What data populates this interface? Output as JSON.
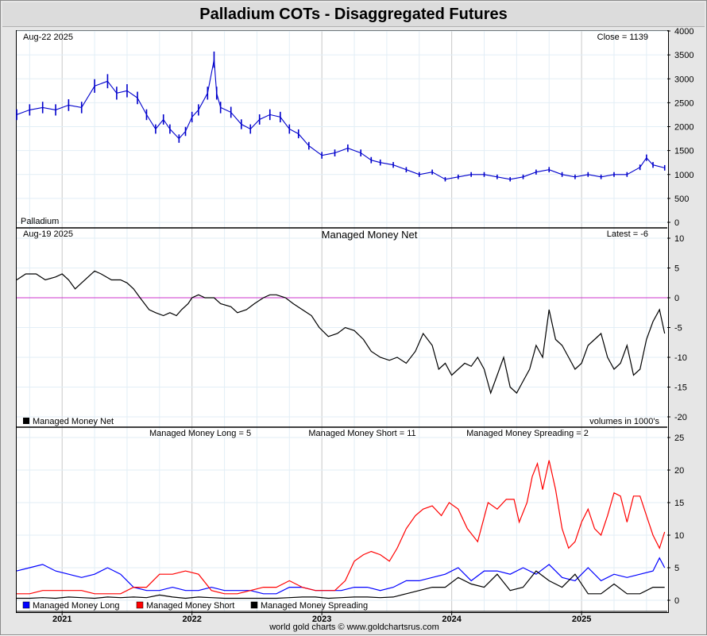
{
  "title": "Palladium COTs - Disaggregated Futures",
  "footer": "world gold charts © www.goldchartsrus.com",
  "x_axis": {
    "years": [
      "2021",
      "2022",
      "2023",
      "2024",
      "2025"
    ]
  },
  "chart_data": [
    {
      "type": "bar",
      "name": "price",
      "date_label": "Aug-22  2025",
      "latest_label": "Close = 1139",
      "series_label": "Palladium",
      "ylim": [
        0,
        4000
      ],
      "yticks": [
        0,
        500,
        1000,
        1500,
        2000,
        2500,
        3000,
        3500,
        4000
      ],
      "color": "#0000cc",
      "x": [
        2020.65,
        2020.75,
        2020.85,
        2020.95,
        2021.05,
        2021.15,
        2021.25,
        2021.35,
        2021.42,
        2021.5,
        2021.58,
        2021.65,
        2021.72,
        2021.78,
        2021.83,
        2021.9,
        2021.95,
        2022.0,
        2022.05,
        2022.12,
        2022.17,
        2022.19,
        2022.22,
        2022.3,
        2022.38,
        2022.45,
        2022.52,
        2022.6,
        2022.68,
        2022.75,
        2022.82,
        2022.9,
        2023.0,
        2023.1,
        2023.2,
        2023.3,
        2023.38,
        2023.45,
        2023.55,
        2023.65,
        2023.75,
        2023.85,
        2023.95,
        2024.05,
        2024.15,
        2024.25,
        2024.35,
        2024.45,
        2024.55,
        2024.65,
        2024.75,
        2024.85,
        2024.95,
        2025.05,
        2025.15,
        2025.25,
        2025.35,
        2025.45,
        2025.5,
        2025.55,
        2025.64
      ],
      "values": [
        2250,
        2350,
        2400,
        2350,
        2450,
        2400,
        2850,
        2950,
        2700,
        2750,
        2600,
        2250,
        1950,
        2150,
        1950,
        1750,
        1900,
        2200,
        2350,
        2700,
        3400,
        2700,
        2400,
        2300,
        2050,
        1950,
        2150,
        2250,
        2200,
        1950,
        1850,
        1600,
        1400,
        1450,
        1550,
        1450,
        1300,
        1250,
        1200,
        1100,
        1000,
        1050,
        900,
        950,
        1000,
        1000,
        950,
        900,
        950,
        1050,
        1100,
        1000,
        950,
        1000,
        950,
        1000,
        1000,
        1150,
        1350,
        1200,
        1139
      ]
    },
    {
      "type": "line",
      "name": "net",
      "date_label": "Aug-19  2025",
      "title": "Managed Money Net",
      "latest_label": "Latest = -6",
      "units_label": "volumes in 1000's",
      "ylim": [
        -20,
        10
      ],
      "yticks": [
        -20,
        -15,
        -10,
        -5,
        0,
        5,
        10
      ],
      "series": [
        {
          "name": "Managed Money Net",
          "color": "#000000",
          "x": [
            2020.65,
            2020.72,
            2020.8,
            2020.87,
            2020.95,
            2021.0,
            2021.05,
            2021.1,
            2021.15,
            2021.2,
            2021.25,
            2021.3,
            2021.38,
            2021.45,
            2021.5,
            2021.55,
            2021.6,
            2021.67,
            2021.72,
            2021.78,
            2021.83,
            2021.88,
            2021.92,
            2021.97,
            2022.0,
            2022.05,
            2022.1,
            2022.17,
            2022.22,
            2022.3,
            2022.35,
            2022.42,
            2022.48,
            2022.55,
            2022.6,
            2022.65,
            2022.72,
            2022.78,
            2022.85,
            2022.92,
            2022.98,
            2023.05,
            2023.12,
            2023.18,
            2023.25,
            2023.32,
            2023.38,
            2023.45,
            2023.52,
            2023.58,
            2023.65,
            2023.72,
            2023.78,
            2023.85,
            2023.9,
            2023.95,
            2024.0,
            2024.05,
            2024.1,
            2024.15,
            2024.2,
            2024.25,
            2024.3,
            2024.35,
            2024.4,
            2024.45,
            2024.5,
            2024.55,
            2024.6,
            2024.65,
            2024.7,
            2024.75,
            2024.8,
            2024.85,
            2024.9,
            2024.95,
            2025.0,
            2025.05,
            2025.1,
            2025.15,
            2025.2,
            2025.25,
            2025.3,
            2025.35,
            2025.4,
            2025.45,
            2025.5,
            2025.55,
            2025.6,
            2025.64
          ],
          "values": [
            3,
            4,
            4,
            3,
            3.5,
            4,
            3,
            1.5,
            2.5,
            3.5,
            4.5,
            4,
            3,
            3,
            2.5,
            1.5,
            0,
            -2,
            -2.5,
            -3,
            -2.5,
            -3,
            -2,
            -1,
            0,
            0.5,
            0,
            0,
            -1,
            -1.5,
            -2.5,
            -2,
            -1,
            0,
            0.5,
            0.5,
            0,
            -1,
            -2,
            -3,
            -5,
            -6.5,
            -6,
            -5,
            -5.5,
            -7,
            -9,
            -10,
            -10.5,
            -10,
            -11,
            -9,
            -6,
            -8,
            -12,
            -11,
            -13,
            -12,
            -11,
            -11.5,
            -10,
            -12,
            -16,
            -13,
            -10,
            -15,
            -16,
            -14,
            -12,
            -8,
            -10,
            -2,
            -7,
            -8,
            -10,
            -12,
            -11,
            -8,
            -7,
            -6,
            -10,
            -12,
            -11,
            -8,
            -13,
            -12,
            -7,
            -4,
            -2,
            -6
          ]
        }
      ]
    },
    {
      "type": "line",
      "name": "positions",
      "ylim": [
        0,
        25
      ],
      "yticks": [
        0,
        5,
        10,
        15,
        20,
        25
      ],
      "header_labels": [
        "Managed Money Long = 5",
        "Managed Money Short = 11",
        "Managed Money Spreading = 2"
      ],
      "series": [
        {
          "name": "Managed Money Long",
          "color": "#0000ff",
          "x": [
            2020.65,
            2020.75,
            2020.85,
            2020.95,
            2021.05,
            2021.15,
            2021.25,
            2021.35,
            2021.45,
            2021.55,
            2021.65,
            2021.75,
            2021.85,
            2021.95,
            2022.05,
            2022.15,
            2022.25,
            2022.35,
            2022.45,
            2022.55,
            2022.65,
            2022.75,
            2022.85,
            2022.95,
            2023.05,
            2023.15,
            2023.25,
            2023.35,
            2023.45,
            2023.55,
            2023.65,
            2023.75,
            2023.85,
            2023.95,
            2024.05,
            2024.15,
            2024.25,
            2024.35,
            2024.45,
            2024.55,
            2024.65,
            2024.75,
            2024.85,
            2024.95,
            2025.05,
            2025.15,
            2025.25,
            2025.35,
            2025.45,
            2025.55,
            2025.6,
            2025.64
          ],
          "values": [
            4.5,
            5,
            5.5,
            4.5,
            4,
            3.5,
            4,
            5,
            4,
            2,
            1.5,
            1.5,
            2,
            1.5,
            1.5,
            2,
            1.5,
            1.5,
            1.5,
            1,
            1,
            2,
            2,
            1.5,
            1.5,
            1.5,
            2,
            2,
            1.5,
            2,
            3,
            3,
            3.5,
            4,
            5,
            3,
            4.5,
            4.5,
            4,
            5,
            4,
            5.5,
            3.5,
            3,
            5,
            3,
            4,
            3.5,
            4,
            4.5,
            6.5,
            5
          ]
        },
        {
          "name": "Managed Money Short",
          "color": "#ff0000",
          "x": [
            2020.65,
            2020.75,
            2020.85,
            2020.95,
            2021.05,
            2021.15,
            2021.25,
            2021.35,
            2021.45,
            2021.55,
            2021.65,
            2021.75,
            2021.85,
            2021.95,
            2022.05,
            2022.15,
            2022.25,
            2022.35,
            2022.45,
            2022.55,
            2022.65,
            2022.75,
            2022.85,
            2022.95,
            2023.02,
            2023.1,
            2023.18,
            2023.25,
            2023.32,
            2023.38,
            2023.45,
            2023.52,
            2023.58,
            2023.65,
            2023.72,
            2023.78,
            2023.85,
            2023.92,
            2023.98,
            2024.05,
            2024.12,
            2024.2,
            2024.28,
            2024.35,
            2024.42,
            2024.48,
            2024.52,
            2024.58,
            2024.62,
            2024.66,
            2024.7,
            2024.75,
            2024.8,
            2024.85,
            2024.9,
            2024.95,
            2025.0,
            2025.05,
            2025.1,
            2025.15,
            2025.2,
            2025.25,
            2025.3,
            2025.35,
            2025.4,
            2025.45,
            2025.5,
            2025.55,
            2025.6,
            2025.64
          ],
          "values": [
            1,
            1,
            1.5,
            1.5,
            1.5,
            1.5,
            1,
            1,
            1,
            2,
            2,
            4,
            4,
            4.5,
            4,
            1.5,
            1,
            1,
            1.5,
            2,
            2,
            3,
            2,
            1.5,
            1.5,
            1.5,
            3,
            6,
            7,
            7.5,
            7,
            6,
            8,
            11,
            13,
            14,
            14.5,
            13,
            15,
            14,
            11,
            9,
            15,
            14,
            15.5,
            15.5,
            12,
            15,
            19,
            21,
            17,
            21.5,
            17,
            11,
            8,
            9,
            12,
            14,
            11,
            10,
            13,
            16.5,
            16,
            12,
            16,
            16,
            13,
            10,
            8,
            10.5
          ]
        },
        {
          "name": "Managed Money Spreading",
          "color": "#000000",
          "x": [
            2020.65,
            2020.75,
            2020.85,
            2020.95,
            2021.05,
            2021.15,
            2021.25,
            2021.35,
            2021.45,
            2021.55,
            2021.65,
            2021.75,
            2021.85,
            2021.95,
            2022.05,
            2022.15,
            2022.25,
            2022.35,
            2022.45,
            2022.55,
            2022.65,
            2022.75,
            2022.85,
            2022.95,
            2023.05,
            2023.15,
            2023.25,
            2023.35,
            2023.45,
            2023.55,
            2023.65,
            2023.75,
            2023.85,
            2023.95,
            2024.05,
            2024.15,
            2024.25,
            2024.35,
            2024.45,
            2024.55,
            2024.65,
            2024.75,
            2024.85,
            2024.95,
            2025.05,
            2025.15,
            2025.25,
            2025.35,
            2025.45,
            2025.55,
            2025.64
          ],
          "values": [
            0.3,
            0.3,
            0.4,
            0.3,
            0.5,
            0.4,
            0.3,
            0.5,
            0.4,
            0.5,
            0.4,
            0.8,
            0.5,
            0.3,
            0.5,
            0.4,
            0.3,
            0.3,
            0.3,
            0.3,
            0.3,
            0.4,
            0.5,
            0.5,
            0.3,
            0.4,
            0.5,
            0.5,
            0.4,
            0.5,
            1,
            1.5,
            2,
            2,
            3.5,
            2.5,
            2,
            4,
            1.5,
            2,
            4.5,
            3,
            2,
            4,
            1,
            1,
            2.5,
            1,
            1,
            2,
            2
          ]
        }
      ]
    }
  ]
}
